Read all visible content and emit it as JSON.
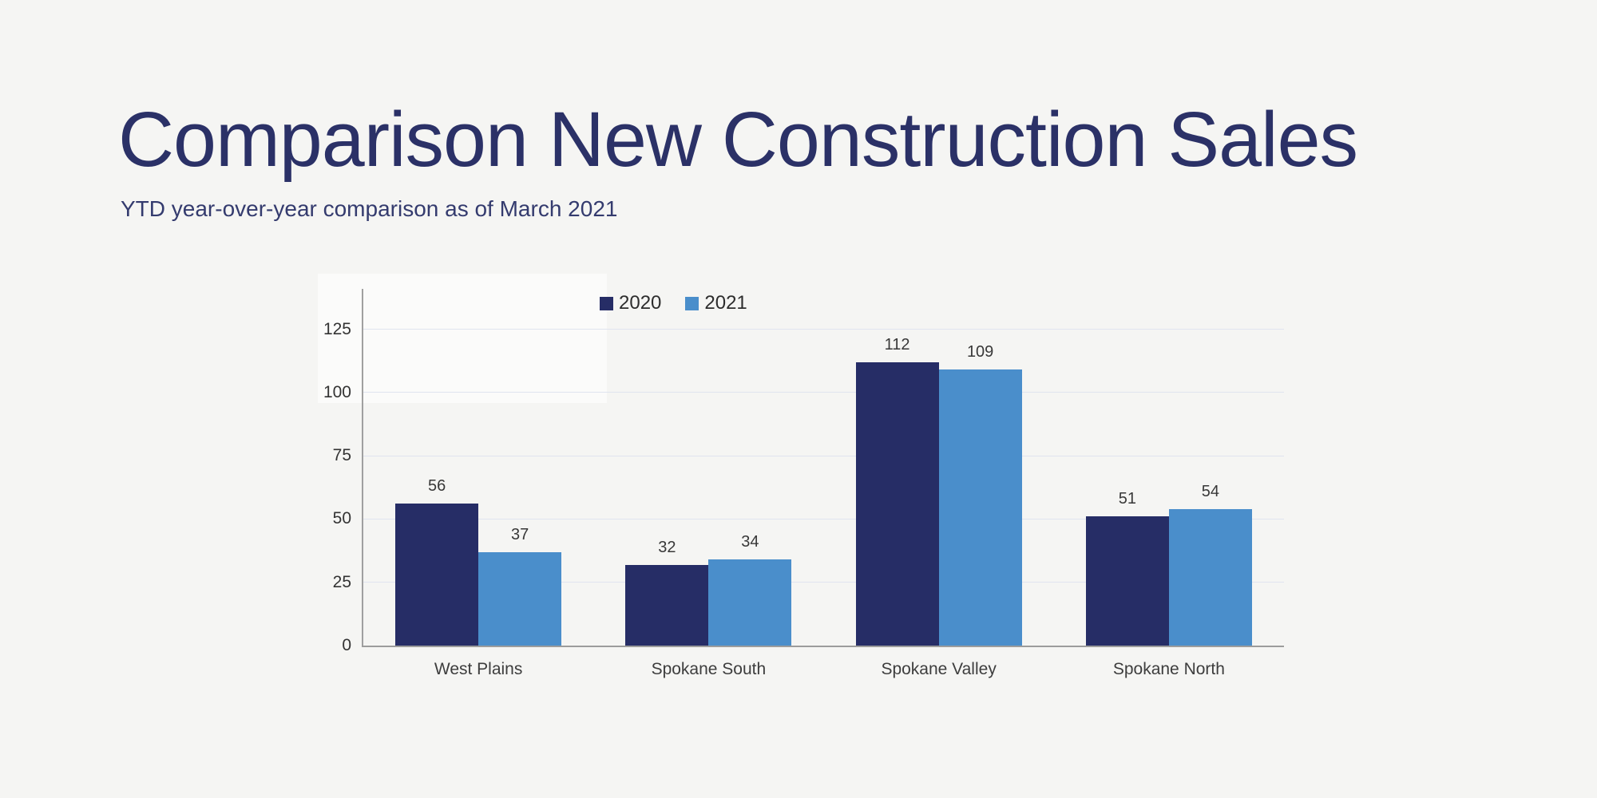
{
  "slide": {
    "title": "Comparison New Construction Sales",
    "subtitle": "YTD year-over-year comparison as of March 2021"
  },
  "colors": {
    "background": "#f5f5f3",
    "title_text": "#2b3167",
    "subtitle_text": "#343b6e",
    "series_2020": "#262d66",
    "series_2021": "#4a8ecb",
    "gridline": "#e0e4ef",
    "axis_line": "#9c9c9c",
    "tick_text": "#333333",
    "value_label_text": "#383838",
    "category_text": "#3d3d3d"
  },
  "chart_data": {
    "type": "bar",
    "title": "",
    "xlabel": "",
    "ylabel": "",
    "categories": [
      "West Plains",
      "Spokane South",
      "Spokane Valley",
      "Spokane North"
    ],
    "series": [
      {
        "name": "2020",
        "color": "#262d66",
        "values": [
          56,
          32,
          112,
          51
        ]
      },
      {
        "name": "2021",
        "color": "#4a8ecb",
        "values": [
          37,
          34,
          109,
          54
        ]
      }
    ],
    "yticks": [
      0,
      25,
      50,
      75,
      100,
      125
    ],
    "ylim": [
      0,
      141
    ],
    "grid": true,
    "legend_position": "top",
    "value_labels": true
  }
}
